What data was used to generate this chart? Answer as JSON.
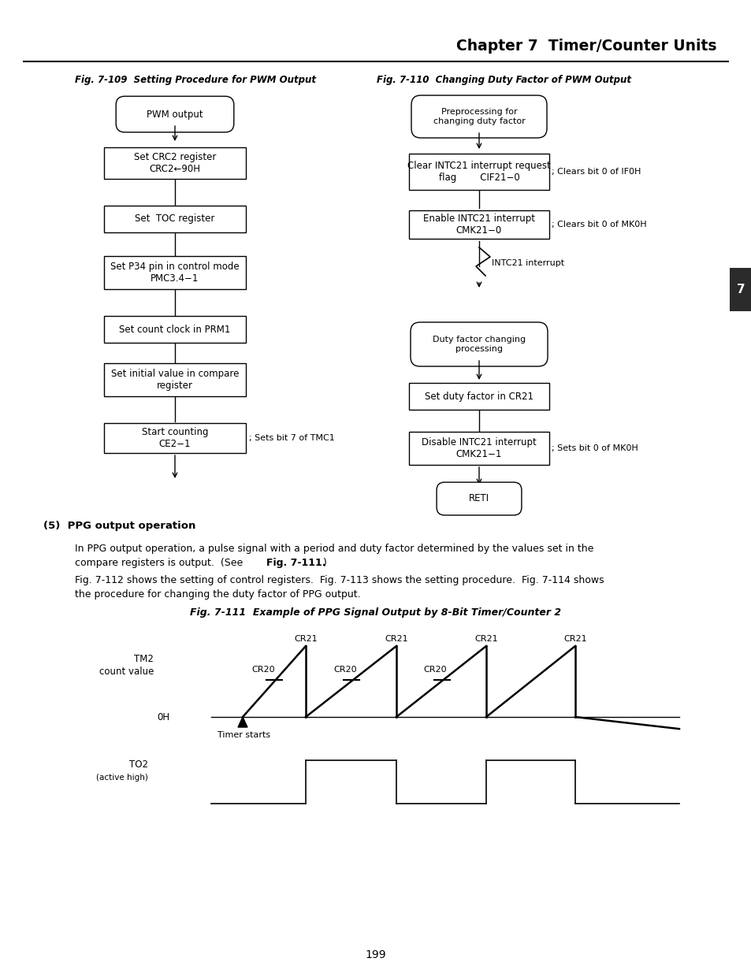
{
  "page_title": "Chapter 7  Timer/Counter Units",
  "page_number": "199",
  "fig109_title": "Fig. 7-109  Setting Procedure for PWM Output",
  "fig110_title": "Fig. 7-110  Changing Duty Factor of PWM Output",
  "fig111_title": "Fig. 7-111  Example of PPG Signal Output by 8-Bit Timer/Counter 2",
  "section_header": "(5)  PPG output operation",
  "para1": "In PPG output operation, a pulse signal with a period and duty factor determined by the values set in the\ncompare registers is output.  (See Fig. 7-111.)",
  "para1_bold": "Fig. 7-111",
  "para2": "Fig. 7-112 shows the setting of control registers.  Fig. 7-113 shows the setting procedure.  Fig. 7-114 shows\nthe procedure for changing the duty factor of PPG output.",
  "bg_color": "#ffffff",
  "line_color": "#000000",
  "text_color": "#000000",
  "tab_color": "#2b2b2b"
}
